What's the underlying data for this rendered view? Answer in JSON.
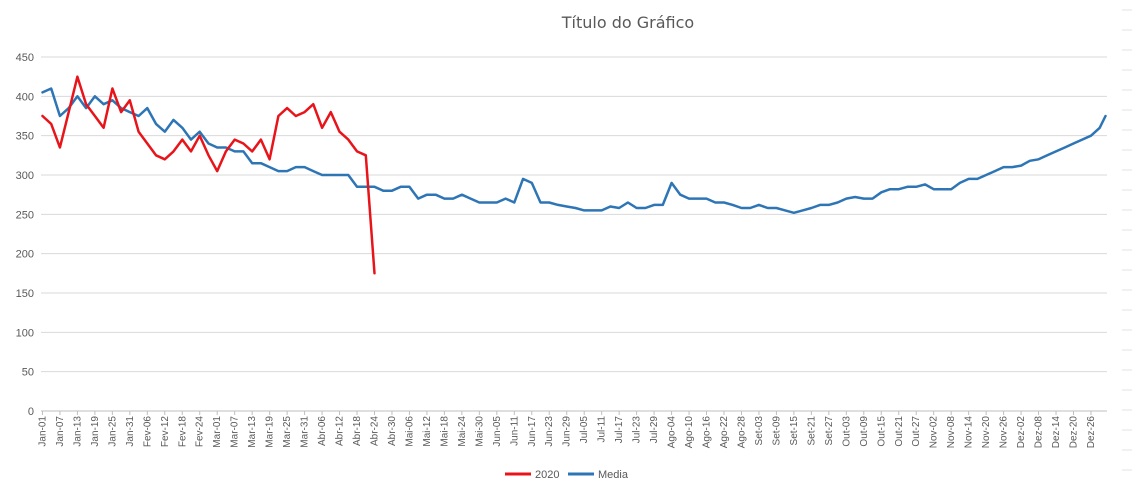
{
  "chart_data": {
    "type": "line",
    "title": "Título do Gráfico",
    "xlabel": "",
    "ylabel": "",
    "ylim": [
      0,
      450
    ],
    "yticks": [
      0,
      50,
      100,
      150,
      200,
      250,
      300,
      350,
      400,
      450
    ],
    "grid": "horizontal gridlines on",
    "legend_position": "bottom",
    "x_tick_labels": [
      "Jan-01",
      "Jan-07",
      "Jan-13",
      "Jan-19",
      "Jan-25",
      "Jan-31",
      "Fev-06",
      "Fev-12",
      "Fev-18",
      "Fev-24",
      "Mar-01",
      "Mar-07",
      "Mar-13",
      "Mar-19",
      "Mar-25",
      "Mar-31",
      "Abr-06",
      "Abr-12",
      "Abr-18",
      "Abr-24",
      "Abr-30",
      "Mai-06",
      "Mai-12",
      "Mai-18",
      "Mai-24",
      "Mai-30",
      "Jun-05",
      "Jun-11",
      "Jun-17",
      "Jun-23",
      "Jun-29",
      "Jul-05",
      "Jul-11",
      "Jul-17",
      "Jul-23",
      "Jul-29",
      "Ago-04",
      "Ago-10",
      "Ago-16",
      "Ago-22",
      "Ago-28",
      "Set-03",
      "Set-09",
      "Set-15",
      "Set-21",
      "Set-27",
      "Out-03",
      "Out-09",
      "Out-15",
      "Out-21",
      "Out-27",
      "Nov-02",
      "Nov-08",
      "Nov-14",
      "Nov-20",
      "Nov-26",
      "Dez-02",
      "Dez-08",
      "Dez-14",
      "Dez-20",
      "Dez-26"
    ],
    "series": [
      {
        "name": "2020",
        "color": "#e8141a",
        "x": [
          "Jan-01",
          "Jan-04",
          "Jan-07",
          "Jan-10",
          "Jan-13",
          "Jan-16",
          "Jan-19",
          "Jan-22",
          "Jan-25",
          "Jan-28",
          "Jan-31",
          "Fev-03",
          "Fev-06",
          "Fev-09",
          "Fev-12",
          "Fev-15",
          "Fev-18",
          "Fev-21",
          "Fev-24",
          "Fev-27",
          "Mar-01",
          "Mar-04",
          "Mar-07",
          "Mar-10",
          "Mar-13",
          "Mar-16",
          "Mar-19",
          "Mar-22",
          "Mar-25",
          "Mar-28",
          "Mar-31",
          "Abr-03",
          "Abr-06",
          "Abr-09",
          "Abr-12",
          "Abr-15",
          "Abr-18",
          "Abr-21",
          "Abr-24"
        ],
        "values": [
          375,
          365,
          335,
          380,
          425,
          390,
          375,
          360,
          410,
          380,
          395,
          355,
          340,
          325,
          320,
          330,
          345,
          330,
          350,
          325,
          305,
          330,
          345,
          340,
          330,
          345,
          320,
          375,
          385,
          375,
          380,
          390,
          360,
          380,
          355,
          345,
          330,
          325,
          175
        ]
      },
      {
        "name": "Media",
        "color": "#2e75b6",
        "x": [
          "Jan-01",
          "Jan-04",
          "Jan-07",
          "Jan-10",
          "Jan-13",
          "Jan-16",
          "Jan-19",
          "Jan-22",
          "Jan-25",
          "Jan-28",
          "Jan-31",
          "Fev-03",
          "Fev-06",
          "Fev-09",
          "Fev-12",
          "Fev-15",
          "Fev-18",
          "Fev-21",
          "Fev-24",
          "Fev-27",
          "Mar-01",
          "Mar-04",
          "Mar-07",
          "Mar-10",
          "Mar-13",
          "Mar-16",
          "Mar-19",
          "Mar-22",
          "Mar-25",
          "Mar-28",
          "Mar-31",
          "Abr-03",
          "Abr-06",
          "Abr-09",
          "Abr-12",
          "Abr-15",
          "Abr-18",
          "Abr-21",
          "Abr-24",
          "Abr-27",
          "Abr-30",
          "Mai-03",
          "Mai-06",
          "Mai-09",
          "Mai-12",
          "Mai-15",
          "Mai-18",
          "Mai-21",
          "Mai-24",
          "Mai-27",
          "Mai-30",
          "Jun-02",
          "Jun-05",
          "Jun-08",
          "Jun-11",
          "Jun-14",
          "Jun-17",
          "Jun-20",
          "Jun-23",
          "Jun-26",
          "Jun-29",
          "Jul-02",
          "Jul-05",
          "Jul-08",
          "Jul-11",
          "Jul-14",
          "Jul-17",
          "Jul-20",
          "Jul-23",
          "Jul-26",
          "Jul-29",
          "Ago-01",
          "Ago-04",
          "Ago-07",
          "Ago-10",
          "Ago-13",
          "Ago-16",
          "Ago-19",
          "Ago-22",
          "Ago-25",
          "Ago-28",
          "Ago-31",
          "Set-03",
          "Set-06",
          "Set-09",
          "Set-12",
          "Set-15",
          "Set-18",
          "Set-21",
          "Set-24",
          "Set-27",
          "Set-30",
          "Out-03",
          "Out-06",
          "Out-09",
          "Out-12",
          "Out-15",
          "Out-18",
          "Out-21",
          "Out-24",
          "Out-27",
          "Out-30",
          "Nov-02",
          "Nov-05",
          "Nov-08",
          "Nov-11",
          "Nov-14",
          "Nov-17",
          "Nov-20",
          "Nov-23",
          "Nov-26",
          "Nov-29",
          "Dez-02",
          "Dez-05",
          "Dez-08",
          "Dez-11",
          "Dez-14",
          "Dez-17",
          "Dez-20",
          "Dez-23",
          "Dez-26",
          "Dez-29",
          "Dez-31"
        ],
        "values": [
          405,
          410,
          375,
          385,
          400,
          385,
          400,
          390,
          395,
          385,
          380,
          375,
          385,
          365,
          355,
          370,
          360,
          345,
          355,
          340,
          335,
          335,
          330,
          330,
          315,
          315,
          310,
          305,
          305,
          310,
          310,
          305,
          300,
          300,
          300,
          300,
          285,
          285,
          285,
          280,
          280,
          285,
          285,
          270,
          275,
          275,
          270,
          270,
          275,
          270,
          265,
          265,
          265,
          270,
          265,
          295,
          290,
          265,
          265,
          262,
          260,
          258,
          255,
          255,
          255,
          260,
          258,
          265,
          258,
          258,
          262,
          262,
          290,
          275,
          270,
          270,
          270,
          265,
          265,
          262,
          258,
          258,
          262,
          258,
          258,
          255,
          252,
          255,
          258,
          262,
          262,
          265,
          270,
          272,
          270,
          270,
          278,
          282,
          282,
          285,
          285,
          288,
          282,
          282,
          282,
          290,
          295,
          295,
          300,
          305,
          310,
          310,
          312,
          318,
          320,
          325,
          330,
          335,
          340,
          345,
          350,
          360,
          375
        ]
      }
    ]
  }
}
